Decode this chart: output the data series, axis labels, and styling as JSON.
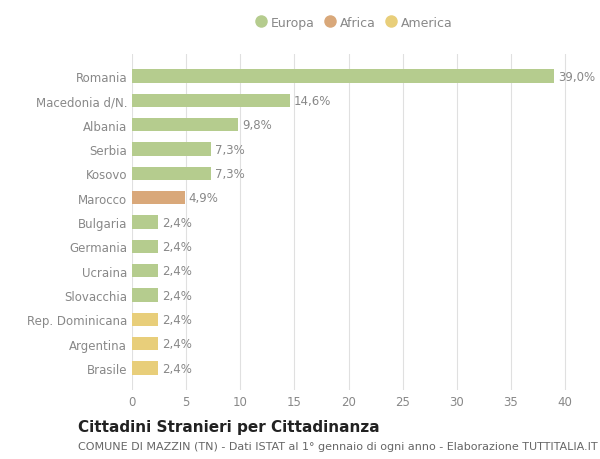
{
  "categories": [
    "Brasile",
    "Argentina",
    "Rep. Dominicana",
    "Slovacchia",
    "Ucraina",
    "Germania",
    "Bulgaria",
    "Marocco",
    "Kosovo",
    "Serbia",
    "Albania",
    "Macedonia d/N.",
    "Romania"
  ],
  "values": [
    2.4,
    2.4,
    2.4,
    2.4,
    2.4,
    2.4,
    2.4,
    4.9,
    7.3,
    7.3,
    9.8,
    14.6,
    39.0
  ],
  "labels": [
    "2,4%",
    "2,4%",
    "2,4%",
    "2,4%",
    "2,4%",
    "2,4%",
    "2,4%",
    "4,9%",
    "7,3%",
    "7,3%",
    "9,8%",
    "14,6%",
    "39,0%"
  ],
  "colors": [
    "#e8ce7a",
    "#e8ce7a",
    "#e8ce7a",
    "#b5cc8e",
    "#b5cc8e",
    "#b5cc8e",
    "#b5cc8e",
    "#d9a87a",
    "#b5cc8e",
    "#b5cc8e",
    "#b5cc8e",
    "#b5cc8e",
    "#b5cc8e"
  ],
  "legend_items": [
    {
      "label": "Europa",
      "color": "#b5cc8e"
    },
    {
      "label": "Africa",
      "color": "#d9a87a"
    },
    {
      "label": "America",
      "color": "#e8ce7a"
    }
  ],
  "title": "Cittadini Stranieri per Cittadinanza",
  "subtitle": "COMUNE DI MAZZIN (TN) - Dati ISTAT al 1° gennaio di ogni anno - Elaborazione TUTTITALIA.IT",
  "xlim": [
    0,
    41
  ],
  "xticks": [
    0,
    5,
    10,
    15,
    20,
    25,
    30,
    35,
    40
  ],
  "background_color": "#ffffff",
  "grid_color": "#e0e0e0",
  "bar_height": 0.55,
  "title_fontsize": 11,
  "subtitle_fontsize": 8,
  "label_fontsize": 8.5,
  "tick_fontsize": 8.5,
  "legend_fontsize": 9,
  "label_color": "#888888",
  "tick_color": "#888888",
  "title_color": "#222222",
  "subtitle_color": "#666666"
}
